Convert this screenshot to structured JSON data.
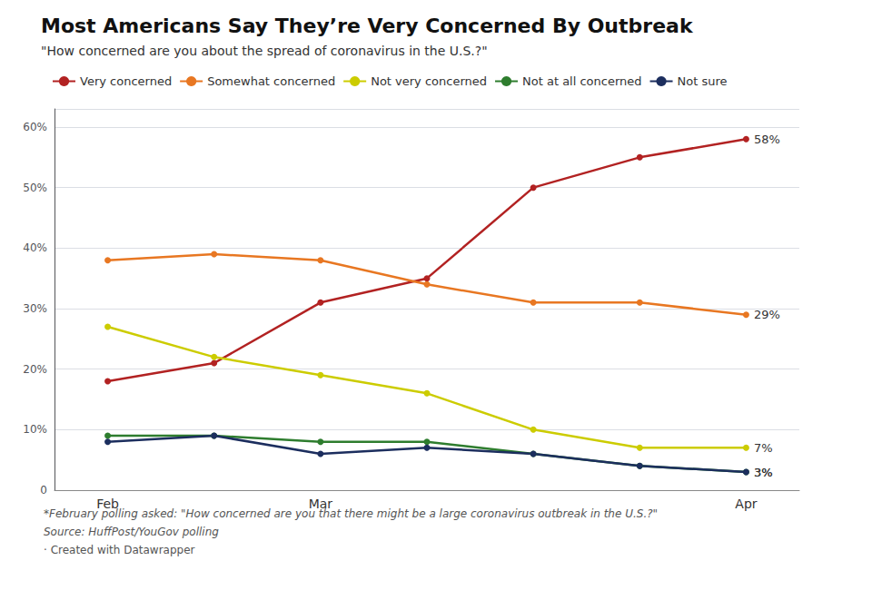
{
  "chart_data": {
    "type": "line",
    "title": "Most Americans Say They’re Very Concerned By Outbreak",
    "subtitle": "\"How concerned are you about the spread of coronavirus in the U.S.?\"",
    "footnotes": [
      "*February polling asked: \"How concerned are you that there might be a large coronavirus outbreak in the U.S.?\"",
      "Source: HuffPost/YouGov polling",
      "· Created with Datawrapper"
    ],
    "categories": [
      "Feb",
      null,
      "Mar",
      null,
      null,
      null,
      "Apr"
    ],
    "series": [
      {
        "name": "Very concerned",
        "color": "#b22222",
        "values": [
          18,
          21,
          31,
          35,
          50,
          55,
          58
        ],
        "value_labels": [
          null,
          null,
          null,
          null,
          null,
          null,
          "58%"
        ]
      },
      {
        "name": "Somewhat concerned",
        "color": "#e87722",
        "values": [
          38,
          39,
          38,
          34,
          31,
          31,
          29
        ],
        "value_labels": [
          null,
          null,
          null,
          null,
          null,
          null,
          "29%"
        ]
      },
      {
        "name": "Not very concerned",
        "color": "#cccc00",
        "values": [
          27,
          22,
          19,
          16,
          10,
          7,
          7
        ],
        "value_labels": [
          null,
          null,
          null,
          null,
          null,
          null,
          "7%"
        ]
      },
      {
        "name": "Not at all concerned",
        "color": "#2e7d2e",
        "values": [
          9,
          9,
          8,
          8,
          6,
          4,
          3
        ],
        "value_labels": [
          null,
          null,
          null,
          null,
          null,
          null,
          "3%"
        ]
      },
      {
        "name": "Not sure",
        "color": "#1c2e5e",
        "values": [
          8,
          9,
          6,
          7,
          6,
          4,
          3
        ],
        "value_labels": [
          null,
          null,
          null,
          null,
          null,
          null,
          "3%"
        ]
      }
    ],
    "ylim": [
      0,
      63
    ],
    "yticks": [
      0,
      {
        "value": 10,
        "label": "10%"
      },
      {
        "value": 20,
        "label": "20%"
      },
      {
        "value": 30,
        "label": "30%"
      },
      {
        "value": 40,
        "label": "40%"
      },
      {
        "value": 50,
        "label": "50%"
      },
      {
        "value": 60,
        "label": "60%"
      }
    ],
    "grid": true,
    "legend": "upper left",
    "marker": "circle",
    "data_labels": true
  }
}
